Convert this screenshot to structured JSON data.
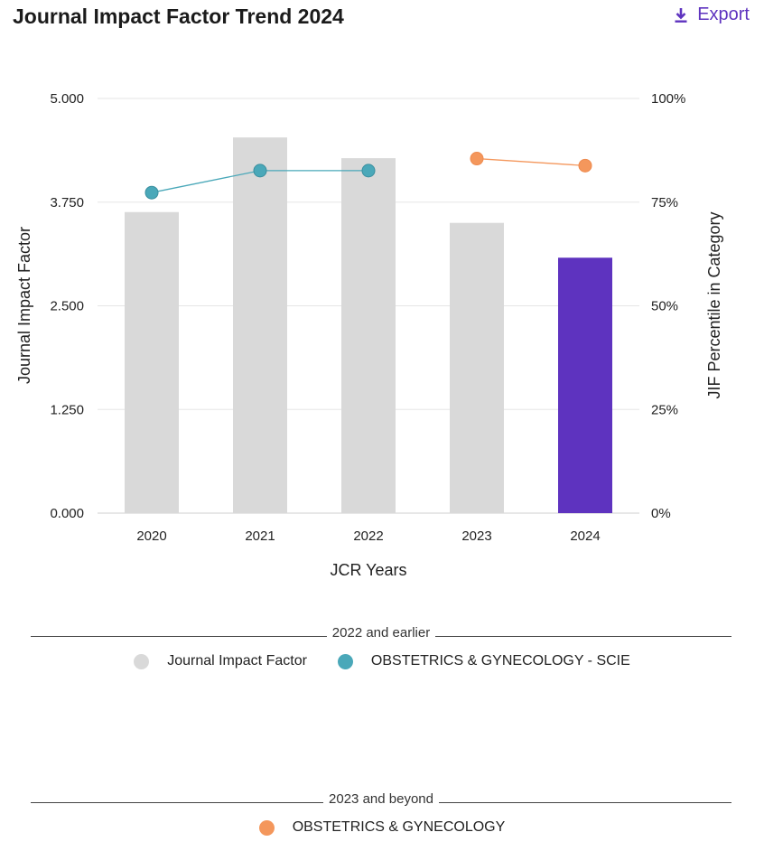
{
  "header": {
    "title": "Journal Impact Factor Trend 2024",
    "export_label": "Export"
  },
  "colors": {
    "bar_default": "#d9d9d9",
    "bar_highlight": "#5e33bf",
    "scie_line": "#4aa8b9",
    "obgyn_line": "#f4975c"
  },
  "chart_data": {
    "type": "bar",
    "categories": [
      "2020",
      "2021",
      "2022",
      "2023",
      "2024"
    ],
    "highlight_category": "2024",
    "xlabel": "JCR Years",
    "ylabel": "Journal Impact Factor",
    "y2label": "JIF Percentile in Category",
    "ylim": [
      0,
      5
    ],
    "y2lim": [
      0,
      100
    ],
    "yticks": [
      "0.000",
      "1.250",
      "2.500",
      "3.750",
      "5.000"
    ],
    "y2ticks": [
      "0%",
      "25%",
      "50%",
      "75%",
      "100%"
    ],
    "grid": true,
    "bars": {
      "name": "Journal Impact Factor",
      "values": [
        3.63,
        4.53,
        4.28,
        3.5,
        3.08
      ]
    },
    "lines": [
      {
        "name": "OBSTETRICS & GYNECOLOGY - SCIE",
        "x": [
          "2020",
          "2021",
          "2022"
        ],
        "values": [
          77.3,
          82.6,
          82.6
        ]
      },
      {
        "name": "OBSTETRICS & GYNECOLOGY",
        "x": [
          "2023",
          "2024"
        ],
        "values": [
          85.5,
          83.8
        ]
      }
    ]
  },
  "legend": {
    "group1": {
      "label": "2022 and earlier",
      "items": [
        "Journal Impact Factor",
        "OBSTETRICS & GYNECOLOGY - SCIE"
      ]
    },
    "group2": {
      "label": "2023 and beyond",
      "items": [
        "OBSTETRICS & GYNECOLOGY"
      ]
    }
  }
}
